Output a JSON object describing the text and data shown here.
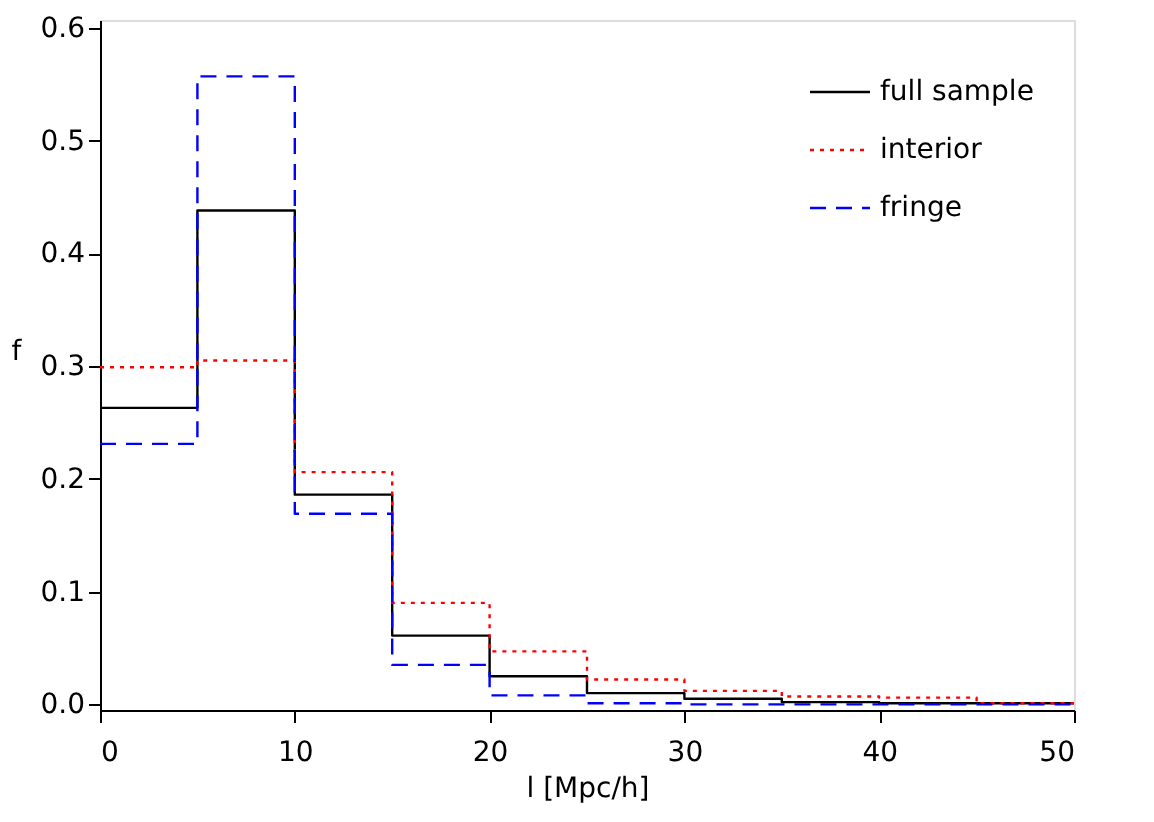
{
  "chart_data": {
    "type": "histogram",
    "xlabel": "l [Mpc/h]",
    "ylabel": "f",
    "bins": [
      0,
      5,
      10,
      15,
      20,
      25,
      30,
      35,
      40,
      45,
      50
    ],
    "series": [
      {
        "name": "full sample",
        "color": "#000000",
        "line_style": "solid",
        "values": [
          0.263,
          0.438,
          0.186,
          0.061,
          0.025,
          0.01,
          0.005,
          0.002,
          0.001,
          0.001
        ]
      },
      {
        "name": "interior",
        "color": "#ff0000",
        "line_style": "dotted",
        "values": [
          0.299,
          0.305,
          0.206,
          0.09,
          0.047,
          0.022,
          0.012,
          0.007,
          0.006,
          0.001
        ]
      },
      {
        "name": "fringe",
        "color": "#0000ff",
        "line_style": "dashed",
        "values": [
          0.231,
          0.557,
          0.169,
          0.035,
          0.008,
          0.001,
          0,
          0,
          0,
          0
        ]
      }
    ],
    "xlim": [
      0,
      50
    ],
    "xticks": [
      0,
      10,
      20,
      30,
      40,
      50
    ],
    "ylim": [
      -0.005,
      0.607
    ],
    "yticks": [
      {
        "value": 0,
        "label": "0.0"
      },
      0.1,
      0.2,
      0.3,
      0.4,
      0.5,
      0.6
    ],
    "grid": false,
    "legend": "top right"
  }
}
